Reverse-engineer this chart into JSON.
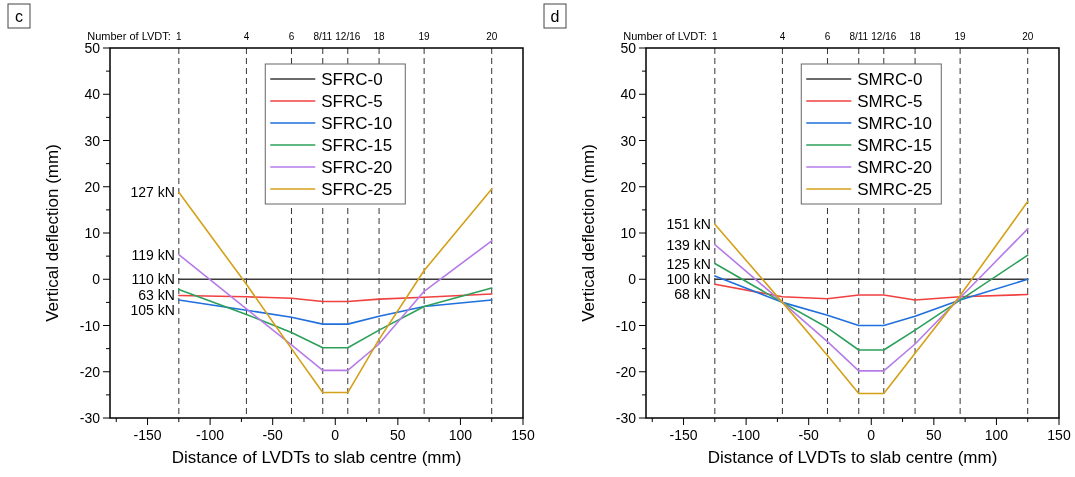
{
  "chart_data": [
    {
      "type": "line",
      "title": "c",
      "xlabel": "Distance of LVDTs to slab centre (mm)",
      "ylabel": "Vertical deflection (mm)",
      "x": [
        -125,
        -71,
        -35,
        -10,
        10,
        35,
        71,
        125
      ],
      "series": [
        {
          "name": "SFRC-0",
          "color": "#3a3a3a",
          "values": [
            0,
            0,
            0,
            0,
            0,
            0,
            0,
            0
          ]
        },
        {
          "name": "SFRC-5",
          "color": "#f04040",
          "values": [
            -3.5,
            -3.8,
            -4.1,
            -4.8,
            -4.8,
            -4.3,
            -3.9,
            -3.2
          ]
        },
        {
          "name": "SFRC-10",
          "color": "#1f6fdc",
          "values": [
            -4.5,
            -6.7,
            -8.2,
            -9.7,
            -9.7,
            -8.0,
            -5.9,
            -4.5
          ]
        },
        {
          "name": "SFRC-15",
          "color": "#2ca05a",
          "values": [
            -2.2,
            -7.6,
            -11.5,
            -14.8,
            -14.8,
            -11.0,
            -5.9,
            -1.9
          ]
        },
        {
          "name": "SFRC-20",
          "color": "#b57be8",
          "values": [
            5.3,
            -6.4,
            -14.2,
            -19.7,
            -19.7,
            -14.0,
            -2.6,
            8.3
          ]
        },
        {
          "name": "SFRC-25",
          "color": "#d4a017",
          "values": [
            18.8,
            -1.1,
            -15.0,
            -24.5,
            -24.5,
            -13.0,
            1.9,
            19.5
          ]
        }
      ],
      "xlim": [
        -180,
        150
      ],
      "xticks": [
        {
          "value": -175,
          "label": null
        },
        -150,
        {
          "value": -125,
          "label": null
        },
        -100,
        {
          "value": -75,
          "label": null
        },
        -50,
        {
          "value": -25,
          "label": null
        },
        0,
        {
          "value": 25,
          "label": null
        },
        50,
        {
          "value": 75,
          "label": null
        },
        100,
        {
          "value": 125,
          "label": null
        },
        150
      ],
      "ylim": [
        -30,
        50
      ],
      "yticks": [
        -30,
        {
          "value": -25,
          "label": null
        },
        -20,
        {
          "value": -15,
          "label": null
        },
        -10,
        {
          "value": -5,
          "label": null
        },
        0,
        {
          "value": 5,
          "label": null
        },
        10,
        {
          "value": 15,
          "label": null
        },
        20,
        {
          "value": 25,
          "label": null
        },
        30,
        {
          "value": 35,
          "label": null
        },
        40,
        {
          "value": 45,
          "label": null
        },
        50
      ],
      "ref_lines": [
        {
          "axis": "x",
          "value": -125,
          "color": "#000000",
          "line_style": "dashed"
        },
        {
          "axis": "x",
          "value": -71,
          "color": "#000000",
          "line_style": "dashed"
        },
        {
          "axis": "x",
          "value": -35,
          "color": "#000000",
          "line_style": "dashed"
        },
        {
          "axis": "x",
          "value": -10,
          "color": "#000000",
          "line_style": "dashed"
        },
        {
          "axis": "x",
          "value": 10,
          "color": "#000000",
          "line_style": "dashed"
        },
        {
          "axis": "x",
          "value": 35,
          "color": "#000000",
          "line_style": "dashed"
        },
        {
          "axis": "x",
          "value": 71,
          "color": "#000000",
          "line_style": "dashed"
        },
        {
          "axis": "x",
          "value": 125,
          "color": "#000000",
          "line_style": "dashed"
        }
      ],
      "annotations": [
        "Number of LVDT:",
        {
          "text": "1",
          "x": -125,
          "y": 50
        },
        {
          "text": "4",
          "x": -71,
          "y": 50
        },
        {
          "text": "6",
          "x": -35,
          "y": 50
        },
        {
          "text": "8/11",
          "x": -10,
          "y": 50
        },
        {
          "text": "12/16",
          "x": 10,
          "y": 50
        },
        {
          "text": "18",
          "x": 35,
          "y": 50
        },
        {
          "text": "19",
          "x": 71,
          "y": 50
        },
        {
          "text": "20",
          "x": 125,
          "y": 50
        },
        {
          "text": "127 kN",
          "x": -125,
          "y": 18.8
        },
        {
          "text": "119 kN",
          "x": -125,
          "y": 5.3
        },
        {
          "text": "110 kN",
          "x": -125,
          "y": 0
        },
        {
          "text": "63 kN",
          "x": -125,
          "y": -3.5
        },
        {
          "text": "105 kN",
          "x": -125,
          "y": -4.5
        }
      ],
      "grid": false,
      "legend": "top",
      "marker": "none",
      "line_style": "solid"
    },
    {
      "type": "line",
      "title": "d",
      "xlabel": "Distance of LVDTs to slab centre (mm)",
      "ylabel": "Vertical deflection (mm)",
      "x": [
        -125,
        -71,
        -35,
        -10,
        10,
        35,
        71,
        125
      ],
      "series": [
        {
          "name": "SMRC-0",
          "color": "#3a3a3a",
          "values": [
            0,
            0,
            0,
            0,
            0,
            0,
            0,
            0
          ]
        },
        {
          "name": "SMRC-5",
          "color": "#f04040",
          "values": [
            -1.1,
            -3.8,
            -4.2,
            -3.4,
            -3.4,
            -4.5,
            -3.8,
            -3.3
          ]
        },
        {
          "name": "SMRC-10",
          "color": "#1f6fdc",
          "values": [
            0.7,
            -5.0,
            -7.8,
            -10.0,
            -10.0,
            -8.0,
            -4.5,
            0
          ]
        },
        {
          "name": "SMRC-15",
          "color": "#2ca05a",
          "values": [
            3.4,
            -5.0,
            -10.5,
            -15.3,
            -15.3,
            -11.0,
            -4.5,
            5.2
          ]
        },
        {
          "name": "SMRC-20",
          "color": "#b57be8",
          "values": [
            7.5,
            -5.0,
            -13.5,
            -19.8,
            -19.8,
            -14.0,
            -4.0,
            10.9
          ]
        },
        {
          "name": "SMRC-25",
          "color": "#d4a017",
          "values": [
            11.9,
            -5.0,
            -16.5,
            -24.7,
            -24.7,
            -16.0,
            -3.5,
            16.8
          ]
        }
      ],
      "xlim": [
        -180,
        150
      ],
      "xticks": [
        {
          "value": -175,
          "label": null
        },
        -150,
        {
          "value": -125,
          "label": null
        },
        -100,
        {
          "value": -75,
          "label": null
        },
        -50,
        {
          "value": -25,
          "label": null
        },
        0,
        {
          "value": 25,
          "label": null
        },
        50,
        {
          "value": 75,
          "label": null
        },
        100,
        {
          "value": 125,
          "label": null
        },
        150
      ],
      "ylim": [
        -30,
        50
      ],
      "yticks": [
        -30,
        {
          "value": -25,
          "label": null
        },
        -20,
        {
          "value": -15,
          "label": null
        },
        -10,
        {
          "value": -5,
          "label": null
        },
        0,
        {
          "value": 5,
          "label": null
        },
        10,
        {
          "value": 15,
          "label": null
        },
        20,
        {
          "value": 25,
          "label": null
        },
        30,
        {
          "value": 35,
          "label": null
        },
        40,
        {
          "value": 45,
          "label": null
        },
        50
      ],
      "ref_lines": [
        {
          "axis": "x",
          "value": -125,
          "color": "#000000",
          "line_style": "dashed"
        },
        {
          "axis": "x",
          "value": -71,
          "color": "#000000",
          "line_style": "dashed"
        },
        {
          "axis": "x",
          "value": -35,
          "color": "#000000",
          "line_style": "dashed"
        },
        {
          "axis": "x",
          "value": -10,
          "color": "#000000",
          "line_style": "dashed"
        },
        {
          "axis": "x",
          "value": 10,
          "color": "#000000",
          "line_style": "dashed"
        },
        {
          "axis": "x",
          "value": 35,
          "color": "#000000",
          "line_style": "dashed"
        },
        {
          "axis": "x",
          "value": 71,
          "color": "#000000",
          "line_style": "dashed"
        },
        {
          "axis": "x",
          "value": 125,
          "color": "#000000",
          "line_style": "dashed"
        }
      ],
      "annotations": [
        "Number of LVDT:",
        {
          "text": "1",
          "x": -125,
          "y": 50
        },
        {
          "text": "4",
          "x": -71,
          "y": 50
        },
        {
          "text": "6",
          "x": -35,
          "y": 50
        },
        {
          "text": "8/11",
          "x": -10,
          "y": 50
        },
        {
          "text": "12/16",
          "x": 10,
          "y": 50
        },
        {
          "text": "18",
          "x": 35,
          "y": 50
        },
        {
          "text": "19",
          "x": 71,
          "y": 50
        },
        {
          "text": "20",
          "x": 125,
          "y": 50
        },
        {
          "text": "151 kN",
          "x": -125,
          "y": 11.9
        },
        {
          "text": "139 kN",
          "x": -125,
          "y": 7.5
        },
        {
          "text": "125 kN",
          "x": -125,
          "y": 3.4
        },
        {
          "text": "100 kN",
          "x": -125,
          "y": 0
        },
        {
          "text": "68 kN",
          "x": -125,
          "y": -1.1
        }
      ],
      "grid": false,
      "legend": "top",
      "marker": "none",
      "line_style": "solid"
    }
  ]
}
